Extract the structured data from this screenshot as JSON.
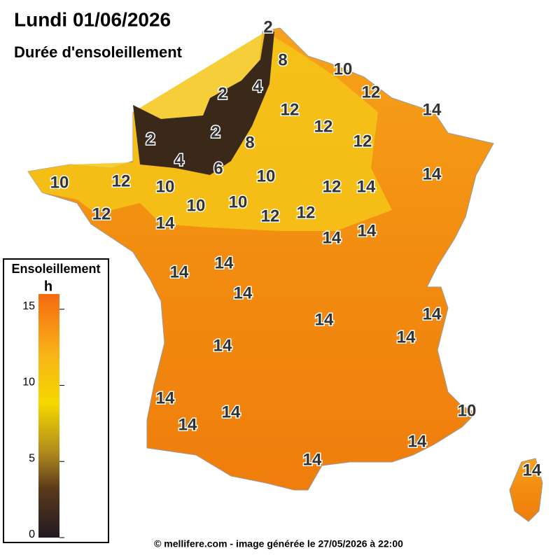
{
  "map": {
    "title": "Lundi 01/06/2026",
    "subtitle": "Durée d'ensoleillement",
    "footer": "© mellifere.com - image générée le 27/05/2026 à 22:00",
    "legend": {
      "title": "Ensoleillement",
      "unit": "h",
      "range": [
        0,
        16
      ],
      "ticks": [
        0,
        5,
        10,
        15
      ]
    },
    "contour_labels": [
      2,
      8,
      10,
      4,
      2,
      12,
      12,
      14,
      12,
      2,
      2,
      8,
      12,
      4,
      6,
      10,
      10,
      12,
      10,
      12,
      14,
      14,
      10,
      10,
      12,
      12,
      12,
      14,
      14,
      14,
      14,
      14,
      14,
      14,
      14,
      14,
      14,
      14,
      14,
      14,
      10,
      14,
      14,
      14
    ]
  }
}
